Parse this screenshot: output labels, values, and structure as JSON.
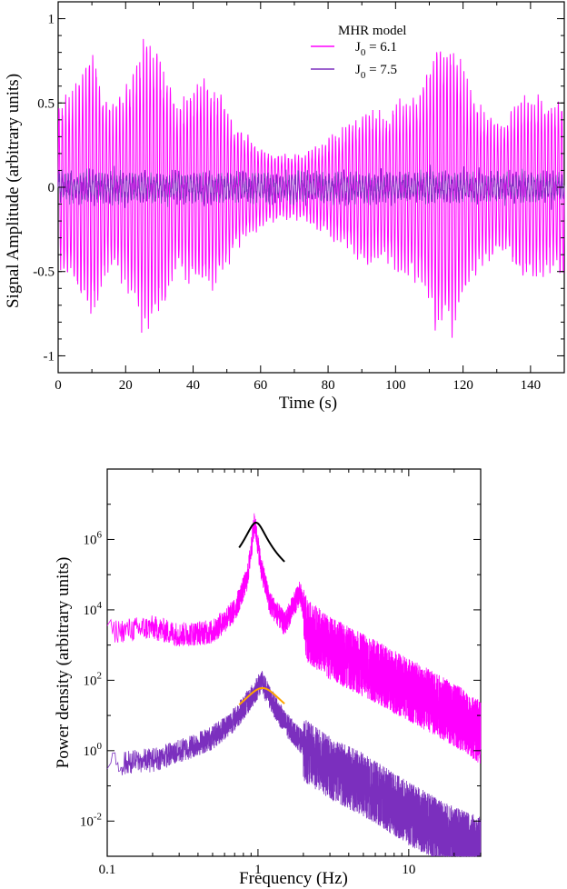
{
  "chart_data": [
    {
      "type": "line",
      "title": "",
      "xlabel": "Time  (s)",
      "ylabel": "Signal Amplitude  (arbitrary units)",
      "xlim": [
        0,
        150
      ],
      "ylim": [
        -1.1,
        1.1
      ],
      "xticks": [
        0,
        20,
        40,
        60,
        80,
        100,
        120,
        140
      ],
      "yticks": [
        -1,
        -0.5,
        0,
        0.5,
        1
      ],
      "xtick_labels": [
        "0",
        "20",
        "40",
        "60",
        "80",
        "100",
        "120",
        "140"
      ],
      "ytick_labels": [
        "-1",
        "-0.5",
        "0",
        "0.5",
        "1"
      ],
      "legend": {
        "title": "MHR  model",
        "placement": "top-right",
        "entries": [
          {
            "main": "J",
            "sub": "0",
            "rest": " = 6.1"
          },
          {
            "main": "J",
            "sub": "0",
            "rest": " = 7.5"
          }
        ]
      },
      "series": [
        {
          "name": "J0 = 6.1",
          "color": "#ff00ff",
          "carrier_hz": 1.0,
          "envelope": [
            [
              0,
              0.5
            ],
            [
              5,
              0.62
            ],
            [
              10,
              0.85
            ],
            [
              15,
              0.5
            ],
            [
              20,
              0.6
            ],
            [
              25,
              0.9
            ],
            [
              30,
              0.85
            ],
            [
              35,
              0.5
            ],
            [
              40,
              0.6
            ],
            [
              43,
              0.67
            ],
            [
              48,
              0.6
            ],
            [
              52,
              0.4
            ],
            [
              57,
              0.3
            ],
            [
              62,
              0.22
            ],
            [
              67,
              0.2
            ],
            [
              72,
              0.2
            ],
            [
              77,
              0.26
            ],
            [
              82,
              0.33
            ],
            [
              87,
              0.4
            ],
            [
              92,
              0.5
            ],
            [
              97,
              0.45
            ],
            [
              102,
              0.55
            ],
            [
              107,
              0.58
            ],
            [
              112,
              0.88
            ],
            [
              117,
              0.9
            ],
            [
              122,
              0.6
            ],
            [
              127,
              0.45
            ],
            [
              132,
              0.4
            ],
            [
              137,
              0.55
            ],
            [
              142,
              0.56
            ],
            [
              147,
              0.5
            ],
            [
              150,
              0.6
            ]
          ]
        },
        {
          "name": "J0 = 7.5",
          "color": "#7b2fbe",
          "carrier_hz": 1.1,
          "envelope": [
            [
              0,
              0.12
            ],
            [
              50,
              0.12
            ],
            [
              100,
              0.12
            ],
            [
              150,
              0.12
            ]
          ]
        }
      ]
    },
    {
      "type": "line",
      "title": "",
      "xlabel": "Frequency  (Hz)",
      "ylabel": "Power density  (arbitrary units)",
      "xscale": "log",
      "yscale": "log",
      "xlim": [
        0.1,
        30
      ],
      "ylim": [
        0.001,
        100000000
      ],
      "xticks": [
        0.1,
        1,
        10
      ],
      "xtick_labels": [
        "0.1",
        "1",
        "10"
      ],
      "yticks": [
        0.01,
        1,
        100,
        10000,
        1000000
      ],
      "ytick_labels": [
        {
          "base": "10",
          "exp": "-2"
        },
        {
          "base": "10",
          "exp": "0"
        },
        {
          "base": "10",
          "exp": "2"
        },
        {
          "base": "10",
          "exp": "4"
        },
        {
          "base": "10",
          "exp": "6"
        }
      ],
      "series": [
        {
          "name": "J0 = 6.1",
          "color": "#ff00ff",
          "kind": "spectrum",
          "points": [
            [
              0.1,
              3000
            ],
            [
              0.2,
              4000
            ],
            [
              0.3,
              2500
            ],
            [
              0.5,
              3000
            ],
            [
              0.7,
              12000
            ],
            [
              0.85,
              100000
            ],
            [
              0.95,
              4000000
            ],
            [
              1.05,
              200000
            ],
            [
              1.2,
              20000
            ],
            [
              1.5,
              5000
            ],
            [
              1.9,
              40000
            ],
            [
              2.1,
              5000
            ],
            [
              3,
              1500
            ],
            [
              5,
              500
            ],
            [
              10,
              100
            ],
            [
              20,
              20
            ],
            [
              30,
              6
            ]
          ]
        },
        {
          "name": "J0 = 7.5",
          "color": "#7b2fbe",
          "kind": "spectrum",
          "points": [
            [
              0.1,
              0.5
            ],
            [
              0.2,
              0.7
            ],
            [
              0.3,
              1.2
            ],
            [
              0.5,
              3
            ],
            [
              0.7,
              10
            ],
            [
              0.9,
              40
            ],
            [
              1.05,
              120
            ],
            [
              1.2,
              40
            ],
            [
              1.5,
              8
            ],
            [
              2,
              2
            ],
            [
              3,
              0.6
            ],
            [
              5,
              0.2
            ],
            [
              10,
              0.03
            ],
            [
              20,
              0.006
            ],
            [
              30,
              0.003
            ]
          ]
        },
        {
          "name": "fit J0 = 6.1",
          "color": "#000000",
          "kind": "lorentzian",
          "center": 0.97,
          "peak": 3000000,
          "log_width": 0.055,
          "x_range": [
            0.75,
            1.5
          ]
        },
        {
          "name": "fit J0 = 7.5",
          "color": "#ffa500",
          "kind": "lorentzian",
          "center": 1.07,
          "peak": 60,
          "log_width": 0.11,
          "x_range": [
            0.75,
            1.5
          ]
        }
      ]
    }
  ]
}
